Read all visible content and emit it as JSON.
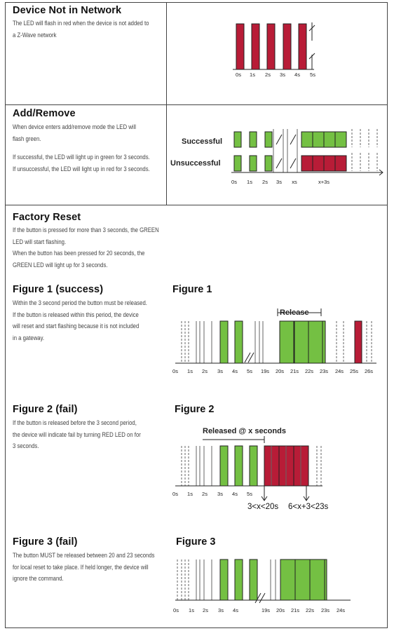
{
  "colors": {
    "red": "#b81c37",
    "green": "#74c043",
    "outline": "#222222",
    "grid": "#666666"
  },
  "sections": {
    "network": {
      "title": "Device Not in Network",
      "lines": [
        "The LED will flash in red when the device is not added to",
        "a Z-Wave network"
      ],
      "ticks": [
        "0s",
        "1s",
        "2s",
        "3s",
        "4s",
        "5s"
      ]
    },
    "addremove": {
      "title": "Add/Remove",
      "lines1": [
        "When device enters add/remove mode the LED will",
        "flash green."
      ],
      "lines2": [
        "If successful, the LED will light up in green for 3 seconds.",
        "If unsuccessful, the LED will light up in red for 3 seconds."
      ],
      "label_success": "Successful",
      "label_fail": "Unsuccessful",
      "ticks": [
        "0s",
        "1s",
        "2s",
        "3s",
        "xs",
        "x+3s"
      ]
    },
    "factory": {
      "title": "Factory Reset",
      "lines": [
        "If the button is pressed for more than 3 seconds, the GREEN",
        "LED will start flashing.",
        "When the button has been pressed for 20 seconds, the",
        "GREEN LED will light up for 3 seconds."
      ]
    },
    "fig1": {
      "title": "Figure 1 (success)",
      "lines": [
        "Within the 3 second period the button must be released.",
        "If the button is released within this period, the device",
        "will reset and start flashing because it is not included",
        "in a gateway."
      ],
      "chart_title": "Figure 1",
      "release_label": "Release",
      "ticks": [
        "0s",
        "1s",
        "2s",
        "3s",
        "4s",
        "5s",
        "19s",
        "20s",
        "21s",
        "22s",
        "23s",
        "24s",
        "25s",
        "26s"
      ]
    },
    "fig2": {
      "title": "Figure 2 (fail)",
      "lines": [
        "If the button is released before the 3 second period,",
        "the device will indicate fail by turning RED LED on for",
        "3 seconds."
      ],
      "chart_title": "Figure 2",
      "released_label": "Released @ x seconds",
      "ticks": [
        "0s",
        "1s",
        "2s",
        "3s",
        "4s",
        "5s"
      ],
      "note1": "3<x<20s",
      "note2": "6<x+3<23s"
    },
    "fig3": {
      "title": "Figure 3 (fail)",
      "lines": [
        "The button MUST be released between 20 and 23 seconds",
        "for local reset to take place. If held longer, the device will",
        "ignore the command."
      ],
      "chart_title": "Figure 3",
      "ticks": [
        "0s",
        "1s",
        "2s",
        "3s",
        "4s",
        "19s",
        "20s",
        "21s",
        "22s",
        "23s",
        "24s"
      ]
    }
  }
}
